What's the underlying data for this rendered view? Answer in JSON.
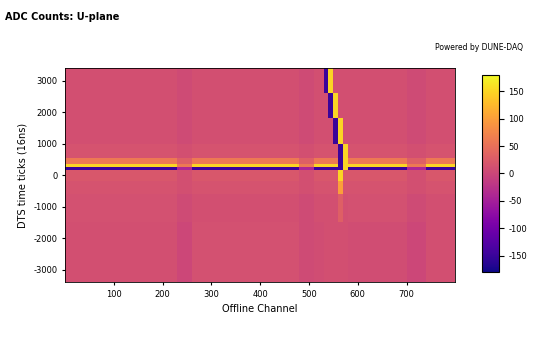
{
  "chart_data": {
    "type": "heatmap",
    "title": "ADC Counts: U-plane",
    "subtitle": "Powered by DUNE-DAQ",
    "x_label": "Offline Channel",
    "y_label": "DTS time ticks (16ns)",
    "xlim": [
      0,
      800
    ],
    "xticks": [
      100,
      200,
      300,
      400,
      500,
      600,
      700
    ],
    "ylim": [
      -3400,
      3400
    ],
    "yticks": [
      -3000,
      -2000,
      -1000,
      0,
      1000,
      2000,
      3000
    ],
    "x_edges": [
      0,
      230,
      260,
      480,
      510,
      530,
      540,
      550,
      560,
      570,
      580,
      700,
      740,
      800
    ],
    "y_edges": [
      -3400,
      -1500,
      -600,
      -200,
      150,
      250,
      350,
      550,
      1000,
      1800,
      2600,
      3400
    ],
    "cells": [
      [
        10,
        0,
        12,
        5,
        8,
        10,
        10,
        10,
        10,
        10,
        8,
        0,
        10
      ],
      [
        12,
        5,
        10,
        5,
        10,
        10,
        10,
        10,
        30,
        10,
        12,
        5,
        10
      ],
      [
        15,
        10,
        15,
        10,
        15,
        15,
        15,
        15,
        100,
        15,
        15,
        10,
        15
      ],
      [
        20,
        10,
        20,
        10,
        20,
        20,
        20,
        20,
        150,
        20,
        20,
        10,
        20
      ],
      [
        -150,
        -40,
        -150,
        -40,
        -150,
        -150,
        -150,
        -150,
        -150,
        150,
        -150,
        -40,
        -150
      ],
      [
        150,
        60,
        150,
        60,
        150,
        150,
        150,
        150,
        -150,
        150,
        150,
        60,
        150
      ],
      [
        60,
        30,
        60,
        30,
        60,
        60,
        60,
        60,
        -150,
        150,
        60,
        30,
        60
      ],
      [
        15,
        10,
        15,
        10,
        15,
        15,
        15,
        15,
        -150,
        150,
        15,
        10,
        15
      ],
      [
        10,
        5,
        10,
        5,
        10,
        10,
        10,
        -150,
        150,
        10,
        10,
        5,
        10
      ],
      [
        10,
        5,
        10,
        5,
        10,
        10,
        -150,
        150,
        10,
        10,
        10,
        5,
        10
      ],
      [
        10,
        5,
        10,
        5,
        10,
        -150,
        150,
        10,
        10,
        10,
        10,
        5,
        10
      ]
    ],
    "colorbar_lim": [
      -180,
      180
    ],
    "colorbar_ticks": [
      -150,
      -100,
      -50,
      0,
      50,
      100,
      150
    ]
  }
}
